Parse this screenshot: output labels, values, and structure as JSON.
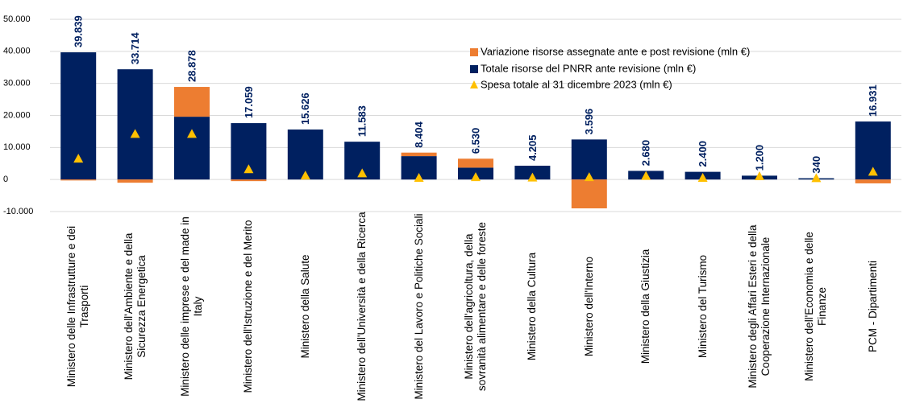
{
  "chart_data": {
    "type": "bar",
    "categories": [
      "Ministero delle Infrastrutture e dei Trasporti",
      "Ministero dell'Ambiente e della Sicurezza Energetica",
      "Ministero delle imprese e del made in Italy",
      "Ministero dell'Istruzione e del Merito",
      "Ministero della Salute",
      "Ministero dell'Università e della Ricerca",
      "Ministero del Lavoro e Politiche Sociali",
      "Ministero dell'agricoltura, della sovranità alimentare e delle foreste",
      "Ministero della Cultura",
      "Ministero dell'Interno",
      "Ministero della Giustizia",
      "Ministero del Turismo",
      "Ministero degli Affari Esteri e della Cooperazione Internazionale",
      "Ministero dell'Economia e delle Finanze",
      "PCM - Dipartimenti"
    ],
    "series": [
      {
        "name": "Variazione risorse assegnate ante e post revisione (mln €)",
        "color": "#ed7d31",
        "values": [
          -300,
          -1000,
          9300,
          -500,
          0,
          0,
          1100,
          2800,
          0,
          -9000,
          0,
          0,
          0,
          0,
          -1200
        ]
      },
      {
        "name": "Totale risorse del PNRR ante revisione (mln €)",
        "color": "#002060",
        "values": [
          39700,
          34400,
          19600,
          17600,
          15600,
          11800,
          7300,
          3700,
          4300,
          12500,
          2700,
          2400,
          1200,
          400,
          18100
        ]
      },
      {
        "name": "Spesa totale al 31 dicembre 2023 (mln €)",
        "color": "#ffc000",
        "values": [
          6300,
          14000,
          14000,
          3000,
          1000,
          1700,
          300,
          500,
          400,
          500,
          900,
          300,
          800,
          200,
          2200
        ]
      }
    ],
    "data_labels": [
      "39.839",
      "33.714",
      "28.878",
      "17.059",
      "15.626",
      "11.583",
      "8.404",
      "6.530",
      "4.205",
      "3.596",
      "2.680",
      "2.400",
      "1.200",
      "340",
      "16.931"
    ],
    "ylim": [
      -10000,
      50000
    ],
    "yticks": [
      {
        "value": -10000,
        "label": "-10.000"
      },
      0,
      {
        "value": 10000,
        "label": "10.000"
      },
      {
        "value": 20000,
        "label": "20.000"
      },
      {
        "value": 30000,
        "label": "30.000"
      },
      {
        "value": 40000,
        "label": "40.000"
      },
      {
        "value": 50000,
        "label": "50.000"
      }
    ],
    "grid": true
  }
}
